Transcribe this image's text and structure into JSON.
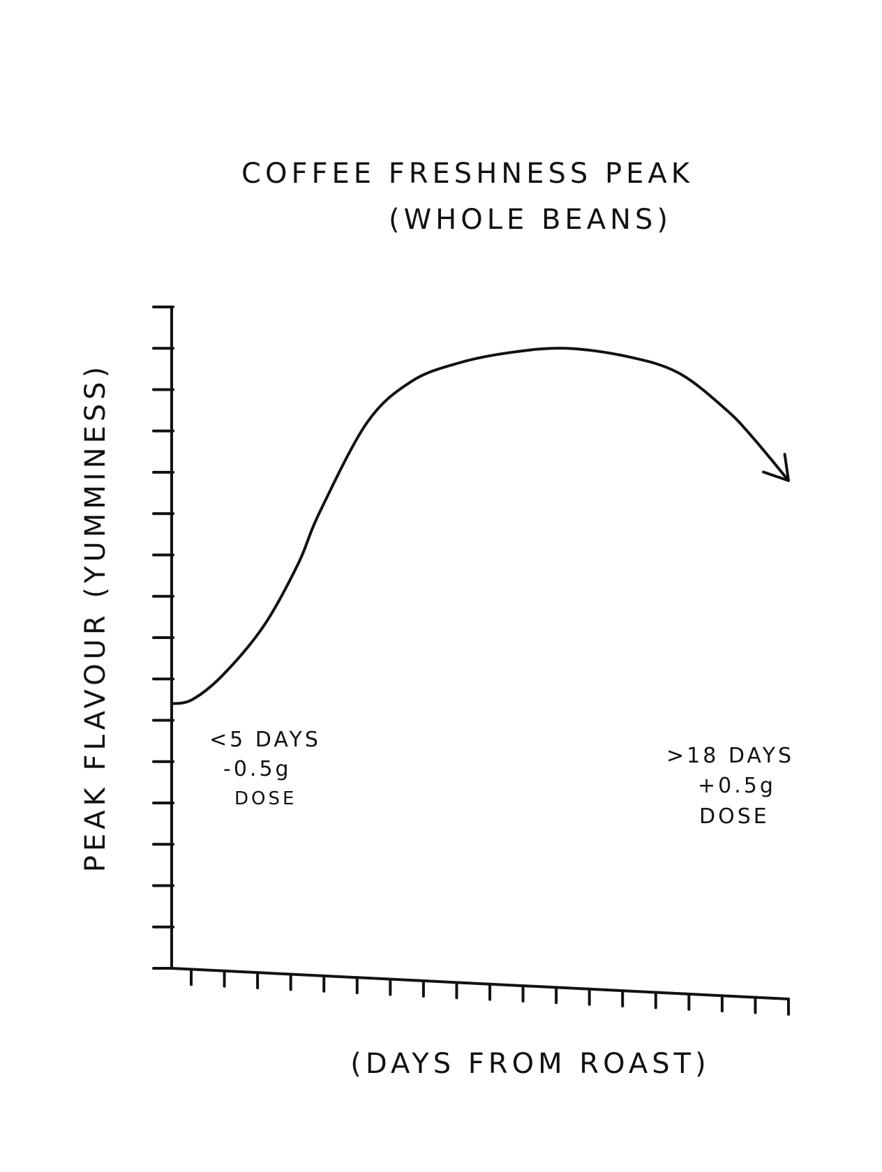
{
  "chart_data": {
    "type": "line",
    "title": "COFFEE FRESHNESS PEAK",
    "subtitle": "(WHOLE BEANS)",
    "xlabel": "(DAYS FROM ROAST)",
    "ylabel": "PEAK FLAVOUR (YUMMINESS)",
    "grid": false,
    "legend": "none",
    "x_tick_count": 19,
    "y_tick_count": 17,
    "xlim": [
      0,
      18
    ],
    "ylim": [
      0,
      16
    ],
    "series": [
      {
        "x": [
          0,
          0.6,
          1.5,
          2.7,
          3.7,
          4.3,
          5.7,
          7.0,
          8.4,
          9.9,
          11.5,
          13.3,
          14.8,
          16.2,
          17.0,
          18.0
        ],
        "y": [
          6.4,
          6.5,
          7.1,
          8.3,
          9.8,
          11.0,
          13.2,
          14.2,
          14.65,
          14.9,
          15.0,
          14.8,
          14.4,
          13.5,
          12.8,
          11.8
        ],
        "end_marker": "arrow"
      }
    ],
    "color": "#111111",
    "annotations": [
      {
        "lines": [
          "<5 DAYS",
          "-0.5g",
          "DOSE"
        ],
        "side": "left"
      },
      {
        "lines": [
          ">18 DAYS",
          "+0.5g",
          "DOSE"
        ],
        "side": "right"
      }
    ]
  }
}
